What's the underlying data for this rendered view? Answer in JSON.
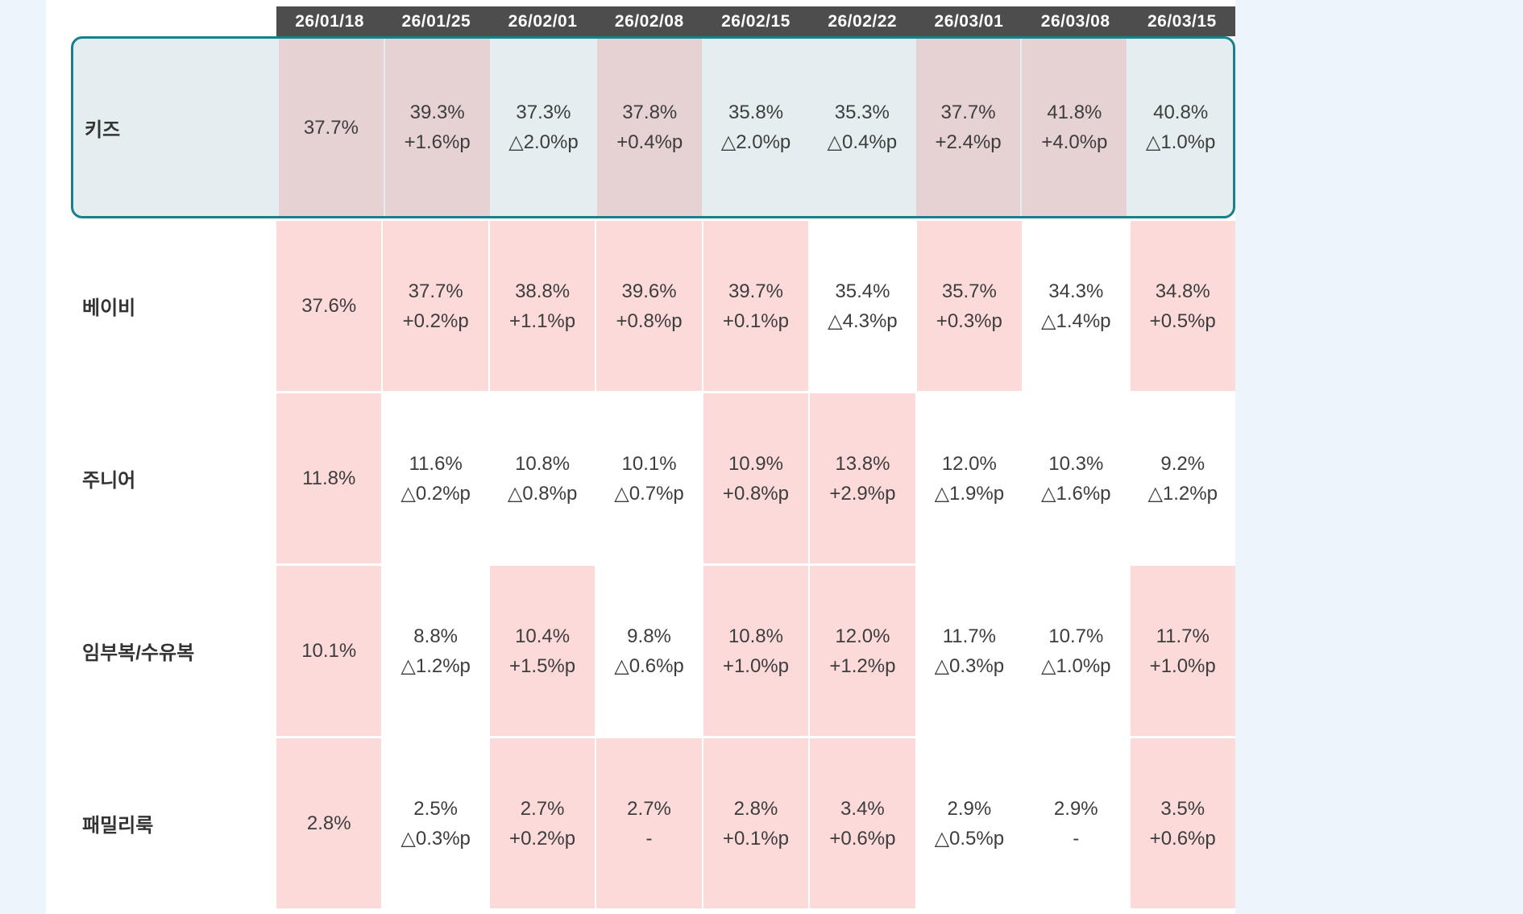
{
  "chart_data": {
    "type": "table",
    "columns": [
      "26/01/18",
      "26/01/25",
      "26/02/01",
      "26/02/08",
      "26/02/15",
      "26/02/22",
      "26/03/01",
      "26/03/08",
      "26/03/15"
    ],
    "rows": [
      {
        "label": "키즈",
        "selected": true,
        "cells": [
          {
            "value": "37.7%",
            "delta": "",
            "bg": "pink"
          },
          {
            "value": "39.3%",
            "delta": "+1.6%p",
            "bg": "pink"
          },
          {
            "value": "37.3%",
            "delta": "△2.0%p",
            "bg": "plain"
          },
          {
            "value": "37.8%",
            "delta": "+0.4%p",
            "bg": "pink"
          },
          {
            "value": "35.8%",
            "delta": "△2.0%p",
            "bg": "plain"
          },
          {
            "value": "35.3%",
            "delta": "△0.4%p",
            "bg": "plain"
          },
          {
            "value": "37.7%",
            "delta": "+2.4%p",
            "bg": "pink"
          },
          {
            "value": "41.8%",
            "delta": "+4.0%p",
            "bg": "pink"
          },
          {
            "value": "40.8%",
            "delta": "△1.0%p",
            "bg": "plain"
          }
        ]
      },
      {
        "label": "베이비",
        "selected": false,
        "cells": [
          {
            "value": "37.6%",
            "delta": "",
            "bg": "pink"
          },
          {
            "value": "37.7%",
            "delta": "+0.2%p",
            "bg": "pink"
          },
          {
            "value": "38.8%",
            "delta": "+1.1%p",
            "bg": "pink"
          },
          {
            "value": "39.6%",
            "delta": "+0.8%p",
            "bg": "pink"
          },
          {
            "value": "39.7%",
            "delta": "+0.1%p",
            "bg": "pink"
          },
          {
            "value": "35.4%",
            "delta": "△4.3%p",
            "bg": "plain"
          },
          {
            "value": "35.7%",
            "delta": "+0.3%p",
            "bg": "pink"
          },
          {
            "value": "34.3%",
            "delta": "△1.4%p",
            "bg": "plain"
          },
          {
            "value": "34.8%",
            "delta": "+0.5%p",
            "bg": "pink"
          }
        ]
      },
      {
        "label": "주니어",
        "selected": false,
        "cells": [
          {
            "value": "11.8%",
            "delta": "",
            "bg": "pink"
          },
          {
            "value": "11.6%",
            "delta": "△0.2%p",
            "bg": "plain"
          },
          {
            "value": "10.8%",
            "delta": "△0.8%p",
            "bg": "plain"
          },
          {
            "value": "10.1%",
            "delta": "△0.7%p",
            "bg": "plain"
          },
          {
            "value": "10.9%",
            "delta": "+0.8%p",
            "bg": "pink"
          },
          {
            "value": "13.8%",
            "delta": "+2.9%p",
            "bg": "pink"
          },
          {
            "value": "12.0%",
            "delta": "△1.9%p",
            "bg": "plain"
          },
          {
            "value": "10.3%",
            "delta": "△1.6%p",
            "bg": "plain"
          },
          {
            "value": "9.2%",
            "delta": "△1.2%p",
            "bg": "plain"
          }
        ]
      },
      {
        "label": "임부복/수유복",
        "selected": false,
        "cells": [
          {
            "value": "10.1%",
            "delta": "",
            "bg": "pink"
          },
          {
            "value": "8.8%",
            "delta": "△1.2%p",
            "bg": "plain"
          },
          {
            "value": "10.4%",
            "delta": "+1.5%p",
            "bg": "pink"
          },
          {
            "value": "9.8%",
            "delta": "△0.6%p",
            "bg": "plain"
          },
          {
            "value": "10.8%",
            "delta": "+1.0%p",
            "bg": "pink"
          },
          {
            "value": "12.0%",
            "delta": "+1.2%p",
            "bg": "pink"
          },
          {
            "value": "11.7%",
            "delta": "△0.3%p",
            "bg": "plain"
          },
          {
            "value": "10.7%",
            "delta": "△1.0%p",
            "bg": "plain"
          },
          {
            "value": "11.7%",
            "delta": "+1.0%p",
            "bg": "pink"
          }
        ]
      },
      {
        "label": "패밀리룩",
        "selected": false,
        "cells": [
          {
            "value": "2.8%",
            "delta": "",
            "bg": "pink"
          },
          {
            "value": "2.5%",
            "delta": "△0.3%p",
            "bg": "plain"
          },
          {
            "value": "2.7%",
            "delta": "+0.2%p",
            "bg": "pink"
          },
          {
            "value": "2.7%",
            "delta": "-",
            "bg": "pink"
          },
          {
            "value": "2.8%",
            "delta": "+0.1%p",
            "bg": "pink"
          },
          {
            "value": "3.4%",
            "delta": "+0.6%p",
            "bg": "pink"
          },
          {
            "value": "2.9%",
            "delta": "△0.5%p",
            "bg": "plain"
          },
          {
            "value": "2.9%",
            "delta": "-",
            "bg": "plain"
          },
          {
            "value": "3.5%",
            "delta": "+0.6%p",
            "bg": "pink"
          }
        ]
      }
    ]
  },
  "colors": {
    "page_bg": "#ecf5f9",
    "panel_bg": "#ffffff",
    "header_bg": "#4d4d4d",
    "header_text": "#ffffff",
    "selected_row_bg": "#e4edef",
    "selected_row_border": "#17808c",
    "selected_increase_cell_bg": "#e6d1d3",
    "increase_cell_bg": "#fcdada",
    "text": "#3d3d3d"
  }
}
